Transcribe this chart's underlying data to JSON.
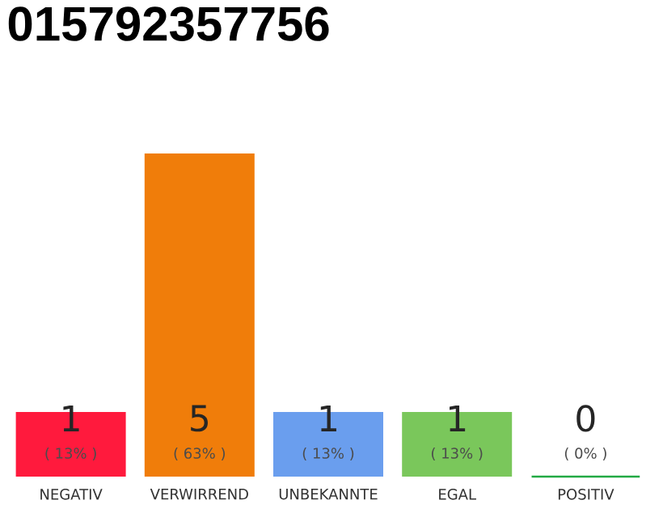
{
  "chart_data": {
    "type": "bar",
    "title": "015792357756",
    "categories": [
      "NEGATIV",
      "VERWIRREND",
      "UNBEKANNTE",
      "EGAL",
      "POSITIV"
    ],
    "values": [
      1,
      5,
      1,
      1,
      0
    ],
    "colors": [
      "#ff1a3d",
      "#f07d0a",
      "#6a9eee",
      "#7ac75b",
      "#22aa44"
    ],
    "value_labels": [
      "1",
      "5",
      "1",
      "1",
      "0"
    ],
    "annotations": [
      "( 13% )",
      "( 63% )",
      "( 13% )",
      "( 13% )",
      "( 0% )"
    ]
  }
}
